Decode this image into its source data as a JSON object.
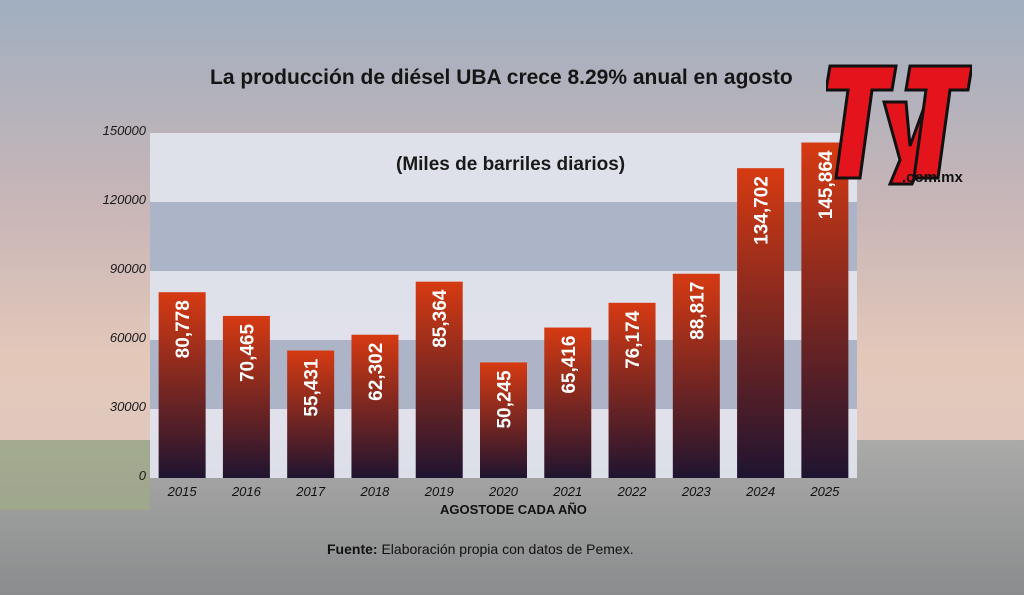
{
  "header": {
    "title": "La producción de diésel UBA crece 8.29% anual en agosto",
    "subtitle": "(Miles de barriles diarios)"
  },
  "footer": {
    "source_label": "Fuente:",
    "source_text": "Elaboración propia con datos de Pemex."
  },
  "logo": {
    "text": "TyT",
    "url_text": ".com.mx"
  },
  "colors": {
    "bar_top": "#d63a12",
    "bar_bottom": "#1f1430",
    "band_light": "#dfe3ec",
    "band_dark": "#aab3c8"
  },
  "chart_data": {
    "type": "bar",
    "title": "La producción de diésel UBA crece 8.29% anual en agosto",
    "subtitle": "(Miles de barriles diarios)",
    "xlabel": "AGOSTODE CADA AÑO",
    "ylabel": "",
    "categories": [
      "2015",
      "2016",
      "2017",
      "2018",
      "2019",
      "2020",
      "2021",
      "2022",
      "2023",
      "2024",
      "2025"
    ],
    "values": [
      80778,
      70465,
      55431,
      62302,
      85364,
      50245,
      65416,
      76174,
      88817,
      134702,
      145864
    ],
    "value_labels": [
      "80,778",
      "70,465",
      "55,431",
      "62,302",
      "85,364",
      "50,245",
      "65,416",
      "76,174",
      "88,817",
      "134,702",
      "145,864"
    ],
    "yticks": [
      0,
      30000,
      60000,
      90000,
      120000,
      150000
    ],
    "ylim": [
      0,
      150000
    ],
    "grid": "alternating horizontal bands"
  }
}
